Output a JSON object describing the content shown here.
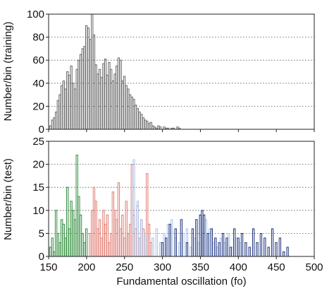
{
  "chart_data": [
    {
      "type": "bar",
      "ylabel": "Number/bin (training)",
      "xlim": [
        150,
        500
      ],
      "ylim": [
        0,
        100
      ],
      "yticks": [
        0,
        20,
        40,
        60,
        80,
        100
      ],
      "ytick_labels": [
        "0",
        "20",
        "40",
        "60",
        "80",
        "100"
      ],
      "grid": "horizontal dotted",
      "bin_width": 2.5,
      "series": [
        {
          "color": "#666666",
          "x": [
            152.5,
            155,
            157.5,
            160,
            162.5,
            165,
            167.5,
            170,
            172.5,
            175,
            177.5,
            180,
            182.5,
            185,
            187.5,
            190,
            192.5,
            195,
            197.5,
            200,
            202.5,
            205,
            207.5,
            210,
            212.5,
            215,
            217.5,
            220,
            222.5,
            225,
            227.5,
            230,
            232.5,
            235,
            237.5,
            240,
            242.5,
            245,
            247.5,
            250,
            252.5,
            255,
            257.5,
            260,
            262.5,
            265,
            267.5,
            270,
            272.5,
            275,
            277.5,
            280,
            282.5,
            285,
            287.5,
            290,
            292.5,
            295,
            297.5,
            300,
            302.5,
            305,
            307.5,
            310,
            312.5,
            315,
            317.5,
            320,
            322.5,
            325
          ],
          "values": [
            3,
            8,
            10,
            15,
            25,
            30,
            38,
            42,
            35,
            50,
            47,
            55,
            40,
            35,
            52,
            60,
            65,
            70,
            72,
            90,
            88,
            78,
            100,
            82,
            56,
            48,
            52,
            45,
            57,
            61,
            47,
            58,
            52,
            42,
            48,
            55,
            62,
            60,
            42,
            46,
            38,
            35,
            30,
            28,
            26,
            21,
            18,
            15,
            13,
            10,
            8,
            7,
            5,
            6,
            3,
            2,
            1,
            3,
            2,
            0,
            2,
            1,
            1,
            0,
            1,
            1,
            0,
            2,
            1,
            0
          ]
        }
      ]
    },
    {
      "type": "bar",
      "xlabel": "Fundamental oscillation (fo)",
      "ylabel": "Number/bin (test)",
      "xlim": [
        150,
        500
      ],
      "ylim": [
        0,
        25
      ],
      "xticks": [
        150,
        200,
        250,
        300,
        350,
        400,
        450,
        500
      ],
      "xtick_labels": [
        "150",
        "200",
        "250",
        "300",
        "350",
        "400",
        "450",
        "500"
      ],
      "yticks": [
        0,
        5,
        10,
        15,
        20,
        25
      ],
      "ytick_labels": [
        "0",
        "5",
        "10",
        "15",
        "20",
        "25"
      ],
      "grid": "horizontal dotted",
      "bin_width": 2.5,
      "series": [
        {
          "color": "#2e8b3a",
          "x": [
            152.5,
            155,
            157.5,
            160,
            162.5,
            165,
            167.5,
            170,
            172.5,
            175,
            177.5,
            180,
            182.5,
            185,
            187.5,
            190,
            192.5,
            195,
            197.5,
            200
          ],
          "values": [
            2,
            4,
            1,
            10,
            5,
            3,
            8,
            7,
            4,
            15,
            6,
            12,
            10,
            8,
            22,
            13,
            9,
            5,
            3,
            6
          ]
        },
        {
          "color": "#e07a70",
          "x": [
            205,
            207.5,
            210,
            212.5,
            215,
            217.5,
            220,
            222.5,
            225,
            227.5,
            230,
            232.5,
            235,
            237.5,
            240,
            242.5,
            245,
            247.5,
            250,
            252.5,
            255,
            257.5,
            260,
            262.5,
            265,
            267.5,
            270,
            272.5,
            275,
            277.5,
            280,
            282.5,
            285
          ],
          "values": [
            5,
            10,
            15,
            12,
            6,
            8,
            4,
            10,
            7,
            9,
            3,
            5,
            14,
            10,
            8,
            16,
            6,
            9,
            4,
            12,
            5,
            7,
            20,
            9,
            6,
            11,
            4,
            8,
            6,
            5,
            18,
            7,
            3
          ]
        },
        {
          "color": "#a9c2e8",
          "x": [
            262.5,
            267.5,
            272.5,
            277.5,
            287.5,
            292.5,
            297.5,
            302.5,
            307.5,
            312.5,
            317.5,
            322.5,
            327.5,
            332.5,
            337.5,
            342.5,
            347.5,
            352.5,
            357.5,
            362.5,
            367.5,
            372.5,
            377.5,
            382.5,
            387.5,
            392.5,
            397.5,
            402.5
          ],
          "values": [
            21,
            12,
            8,
            5,
            4,
            6,
            3,
            5,
            7,
            8,
            4,
            3,
            5,
            6,
            2,
            4,
            3,
            5,
            8,
            6,
            3,
            2,
            4,
            3,
            5,
            2,
            4,
            3
          ]
        },
        {
          "color": "#1a2f7a",
          "x": [
            300,
            305,
            310,
            317.5,
            325,
            332.5,
            340,
            345,
            350,
            352.5,
            355,
            360,
            365,
            370,
            375,
            380,
            385,
            390,
            395,
            400,
            405,
            410,
            415,
            420,
            425,
            430,
            435,
            440,
            445,
            450,
            455,
            460,
            465
          ],
          "values": [
            3,
            4,
            7,
            6,
            8,
            3,
            6,
            8,
            9,
            10,
            9,
            5,
            6,
            4,
            3,
            5,
            4,
            2,
            6,
            4,
            5,
            3,
            2,
            6,
            3,
            5,
            4,
            2,
            6,
            3,
            4,
            1,
            2
          ]
        }
      ]
    }
  ]
}
